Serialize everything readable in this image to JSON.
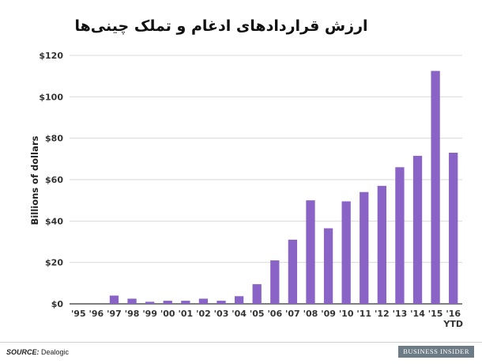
{
  "title": "ارزش قراردادهای ادغام و تملک چینی‌ها",
  "source_label": "SOURCE:",
  "source_value": "Dealogic",
  "brand": "BUSINESS INSIDER",
  "colors": {
    "bar": "#8a63c7",
    "grid": "#d9d9d9",
    "axis": "#333333"
  },
  "chart_data": {
    "type": "bar",
    "title": "ارزش قراردادهای ادغام و تملک چینی‌ها",
    "xlabel": "",
    "ylabel": "Billions of dollars",
    "ylim": [
      0,
      120
    ],
    "yticks": [
      0,
      20,
      40,
      60,
      80,
      100,
      120
    ],
    "ytick_labels": [
      "$0",
      "$20",
      "$40",
      "$60",
      "$80",
      "$100",
      "$120"
    ],
    "grid": true,
    "categories": [
      "'95",
      "'96",
      "'97",
      "'98",
      "'99",
      "'00",
      "'01",
      "'02",
      "'03",
      "'04",
      "'05",
      "'06",
      "'07",
      "'08",
      "'09",
      "'10",
      "'11",
      "'12",
      "'13",
      "'14",
      "'15",
      "'16"
    ],
    "category_sublabels": {
      "'16": "YTD"
    },
    "values": [
      0,
      0,
      4,
      2.5,
      1,
      1.5,
      1.5,
      2.5,
      1.5,
      3.7,
      9.5,
      21,
      31,
      50,
      36.5,
      49.5,
      54,
      57,
      66,
      71.5,
      112.5,
      73
    ]
  }
}
